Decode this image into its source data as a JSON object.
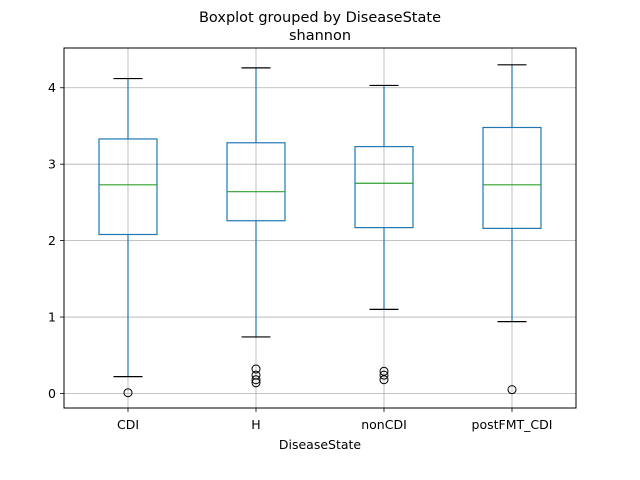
{
  "chart_data": {
    "type": "boxplot",
    "title": "Boxplot grouped by DiseaseState",
    "subtitle": "shannon",
    "xlabel": "DiseaseState",
    "ylabel": "",
    "ylim": [
      -0.19,
      4.52
    ],
    "yticks": [
      0,
      1,
      2,
      3,
      4
    ],
    "grid": true,
    "box_color": "#1f77b4",
    "median_color": "#2ca02c",
    "categories": [
      "CDI",
      "H",
      "nonCDI",
      "postFMT_CDI"
    ],
    "boxes": [
      {
        "category": "CDI",
        "whisker_low": 0.22,
        "q1": 2.08,
        "median": 2.73,
        "q3": 3.33,
        "whisker_high": 4.12,
        "outliers": [
          0.01
        ]
      },
      {
        "category": "H",
        "whisker_low": 0.74,
        "q1": 2.26,
        "median": 2.64,
        "q3": 3.28,
        "whisker_high": 4.26,
        "outliers": [
          0.14,
          0.18,
          0.24,
          0.32
        ]
      },
      {
        "category": "nonCDI",
        "whisker_low": 1.1,
        "q1": 2.17,
        "median": 2.75,
        "q3": 3.23,
        "whisker_high": 4.03,
        "outliers": [
          0.18,
          0.24,
          0.29
        ]
      },
      {
        "category": "postFMT_CDI",
        "whisker_low": 0.94,
        "q1": 2.16,
        "median": 2.73,
        "q3": 3.48,
        "whisker_high": 4.3,
        "outliers": [
          0.05
        ]
      }
    ]
  }
}
